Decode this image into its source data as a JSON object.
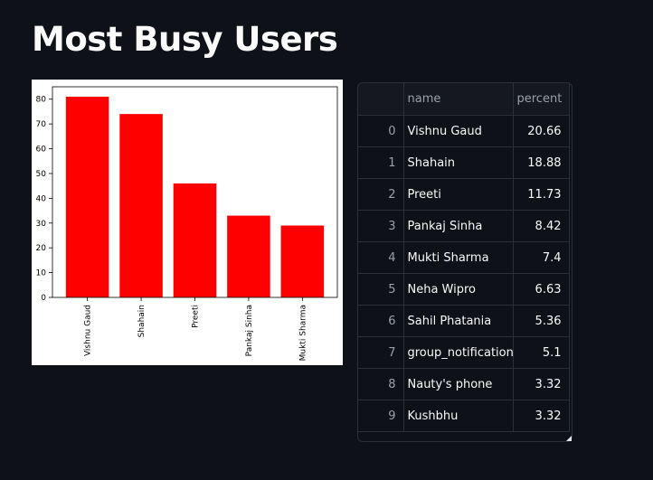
{
  "page": {
    "title": "Most Busy Users"
  },
  "chart_data": {
    "type": "bar",
    "categories": [
      "Vishnu Gaud",
      "Shahain",
      "Preeti",
      "Pankaj Sinha",
      "Mukti Sharma"
    ],
    "values": [
      81,
      74,
      46,
      33,
      29
    ],
    "ylim": [
      0,
      85
    ],
    "yticks": [
      0,
      10,
      20,
      30,
      40,
      50,
      60,
      70,
      80
    ],
    "bar_color": "#ff0000",
    "title": "",
    "xlabel": "",
    "ylabel": ""
  },
  "table": {
    "columns": [
      "",
      "name",
      "percent"
    ],
    "rows": [
      {
        "index": "0",
        "name": "Vishnu Gaud",
        "percent": "20.66"
      },
      {
        "index": "1",
        "name": "Shahain",
        "percent": "18.88"
      },
      {
        "index": "2",
        "name": "Preeti",
        "percent": "11.73"
      },
      {
        "index": "3",
        "name": "Pankaj Sinha",
        "percent": "8.42"
      },
      {
        "index": "4",
        "name": "Mukti Sharma",
        "percent": "7.4"
      },
      {
        "index": "5",
        "name": "Neha Wipro",
        "percent": "6.63"
      },
      {
        "index": "6",
        "name": "Sahil Phatania",
        "percent": "5.36"
      },
      {
        "index": "7",
        "name": "group_notification",
        "percent": "5.1"
      },
      {
        "index": "8",
        "name": "Nauty's phone",
        "percent": "3.32"
      },
      {
        "index": "9",
        "name": "Kushbhu",
        "percent": "3.32"
      }
    ]
  }
}
